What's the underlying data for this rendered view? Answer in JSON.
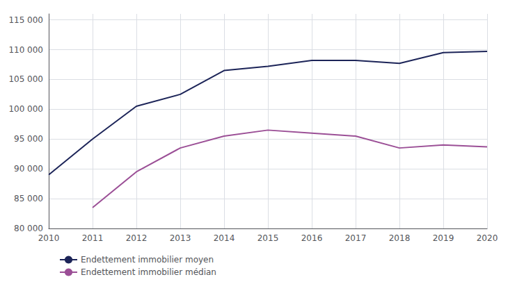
{
  "chart_data": {
    "type": "line",
    "x": [
      2010,
      2011,
      2012,
      2013,
      2014,
      2015,
      2016,
      2017,
      2018,
      2019,
      2020
    ],
    "series": [
      {
        "name": "Endettement immobilier moyen",
        "color": "#1c2458",
        "values": [
          89000,
          95000,
          100500,
          102500,
          106500,
          107200,
          108200,
          108200,
          107700,
          109500,
          109700
        ]
      },
      {
        "name": "Endettement immobilier médian",
        "color": "#9b4f96",
        "values": [
          null,
          83500,
          89500,
          93500,
          95500,
          96500,
          96000,
          95500,
          93500,
          94000,
          93700
        ]
      }
    ],
    "xlim": [
      2010,
      2020
    ],
    "xticks": [
      2010,
      2011,
      2012,
      2013,
      2014,
      2015,
      2016,
      2017,
      2018,
      2019,
      2020
    ],
    "ylim": [
      80000,
      116000
    ],
    "yticks": [
      {
        "value": 80000,
        "label": "80 000"
      },
      {
        "value": 85000,
        "label": "85 000"
      },
      {
        "value": 90000,
        "label": "90 000"
      },
      {
        "value": 95000,
        "label": "95 000"
      },
      {
        "value": 100000,
        "label": "100 000"
      },
      {
        "value": 105000,
        "label": "105 000"
      },
      {
        "value": 110000,
        "label": "110 000"
      },
      {
        "value": 115000,
        "label": "115 000"
      }
    ],
    "grid": true,
    "legend": "bottom"
  }
}
